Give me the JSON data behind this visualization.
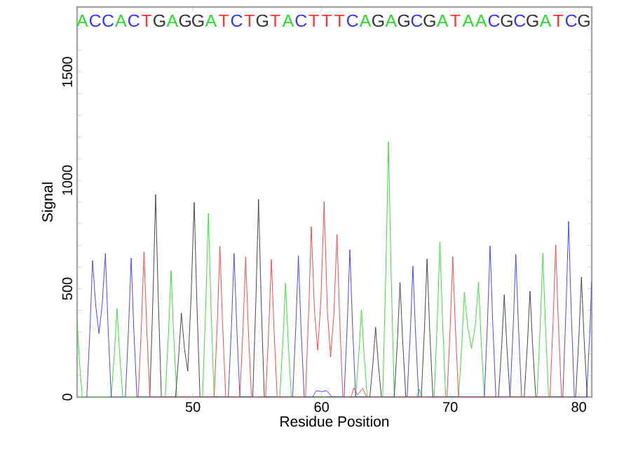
{
  "chart_data": {
    "type": "line",
    "xlabel": "Residue Position",
    "ylabel": "Signal",
    "xlim": [
      41,
      81
    ],
    "ylim": [
      0,
      1800
    ],
    "xticks": [
      50,
      60,
      70,
      80
    ],
    "yticks": [
      0,
      {
        "value": 100,
        "label": null
      },
      {
        "value": 200,
        "label": null
      },
      {
        "value": 300,
        "label": null
      },
      {
        "value": 400,
        "label": null
      },
      500,
      {
        "value": 600,
        "label": null
      },
      {
        "value": 700,
        "label": null
      },
      {
        "value": 800,
        "label": null
      },
      {
        "value": 900,
        "label": null
      },
      1000,
      {
        "value": 1100,
        "label": null
      },
      {
        "value": 1200,
        "label": null
      },
      {
        "value": 1300,
        "label": null
      },
      {
        "value": 1400,
        "label": null
      },
      1500,
      {
        "value": 1600,
        "label": null
      },
      {
        "value": 1700,
        "label": null
      }
    ],
    "marker": "none",
    "line_style": "solid",
    "series": [
      {
        "color": "#22dd22",
        "x": [
          41,
          41.2,
          41.4,
          43.65,
          43.9,
          44.1,
          44.3,
          44.55,
          47.85,
          48.1,
          48.3,
          48.5,
          48.75,
          50.75,
          51,
          51.2,
          51.4,
          51.65,
          56.75,
          57,
          57.2,
          57.4,
          57.65,
          62.65,
          62.9,
          63.1,
          63.3,
          63.55,
          64.75,
          65,
          65.2,
          65.4,
          65.65,
          67.4,
          67.6,
          67.8,
          68.75,
          69,
          69.2,
          69.4,
          69.65,
          70.65,
          70.9,
          71.1,
          71.35,
          71.65,
          71.95,
          72.2,
          72.4,
          72.65,
          76.75,
          77,
          77.2,
          77.4,
          77.65
        ],
        "values": [
          350,
          150,
          0,
          0,
          205,
          409,
          205,
          0,
          0,
          292,
          583,
          292,
          0,
          0,
          424,
          848,
          424,
          0,
          0,
          263,
          526,
          263,
          0,
          0,
          201,
          402,
          201,
          0,
          0,
          589,
          1178,
          589,
          0,
          0,
          37,
          0,
          0,
          358,
          715,
          358,
          0,
          0,
          242,
          483,
          330,
          224,
          330,
          530,
          265,
          0,
          0,
          332,
          663,
          332,
          0
        ]
      },
      {
        "color": "#3333ff",
        "x": [
          41.75,
          42,
          42.2,
          42.45,
          42.7,
          42.95,
          43.2,
          43.4,
          43.65,
          44.75,
          45,
          45.2,
          45.4,
          45.65,
          52.75,
          53,
          53.2,
          53.4,
          53.65,
          57.75,
          58,
          58.2,
          58.4,
          58.65,
          59.3,
          59.6,
          60,
          60.4,
          60.8,
          61.75,
          62,
          62.2,
          62.4,
          62.65,
          66.65,
          66.9,
          67.1,
          67.3,
          67.55,
          72.65,
          72.9,
          73.1,
          73.3,
          73.55,
          74.65,
          74.9,
          75.1,
          75.3,
          75.55,
          78.75,
          79,
          79.2,
          79.4,
          79.65,
          80.6,
          80.85,
          81
        ],
        "values": [
          0,
          315,
          630,
          420,
          293,
          430,
          663,
          332,
          0,
          0,
          320,
          641,
          320,
          0,
          0,
          332,
          663,
          332,
          0,
          0,
          326,
          652,
          326,
          0,
          0,
          30,
          25,
          30,
          0,
          0,
          340,
          680,
          340,
          0,
          0,
          302,
          604,
          302,
          0,
          0,
          349,
          698,
          349,
          0,
          0,
          330,
          659,
          330,
          0,
          0,
          406,
          811,
          406,
          0,
          0,
          300,
          533
        ]
      },
      {
        "color": "#333333",
        "x": [
          46.65,
          46.9,
          47.1,
          47.3,
          47.55,
          48.65,
          48.9,
          49.1,
          49.35,
          49.6,
          49.85,
          50.1,
          50.3,
          50.55,
          54.65,
          54.9,
          55.1,
          55.3,
          55.55,
          63.75,
          64,
          64.2,
          64.4,
          64.65,
          65.65,
          65.9,
          66.1,
          66.3,
          66.55,
          67.75,
          68,
          68.2,
          68.4,
          68.65,
          73.75,
          74,
          74.2,
          74.4,
          74.65,
          75.75,
          76,
          76.2,
          76.4,
          76.65,
          79.75,
          80,
          80.2,
          80.4,
          80.65
        ],
        "values": [
          0,
          468,
          935,
          468,
          0,
          0,
          194,
          387,
          220,
          120,
          450,
          898,
          449,
          0,
          0,
          456,
          913,
          456,
          0,
          0,
          161,
          322,
          161,
          0,
          0,
          264,
          528,
          264,
          0,
          0,
          318,
          637,
          318,
          0,
          0,
          236,
          472,
          236,
          0,
          0,
          244,
          489,
          244,
          0,
          0,
          277,
          554,
          277,
          0
        ]
      },
      {
        "color": "#ff3333",
        "x": [
          45.75,
          46,
          46.2,
          46.4,
          46.65,
          51.65,
          51.9,
          52.1,
          52.3,
          52.55,
          53.65,
          53.9,
          54.1,
          54.3,
          54.55,
          55.65,
          55.9,
          56.1,
          56.3,
          56.55,
          58.75,
          59,
          59.2,
          59.45,
          59.7,
          59.95,
          60.2,
          60.45,
          60.7,
          60.95,
          61.2,
          61.4,
          61.65,
          62.3,
          62.5,
          62.8,
          63.2,
          63.5,
          69.75,
          70,
          70.2,
          70.4,
          70.65,
          77.75,
          78,
          78.2,
          78.4,
          78.65
        ],
        "values": [
          0,
          335,
          670,
          335,
          0,
          0,
          348,
          696,
          348,
          0,
          0,
          323,
          646,
          323,
          0,
          0,
          318,
          635,
          318,
          0,
          0,
          394,
          787,
          400,
          217,
          450,
          902,
          400,
          185,
          375,
          750,
          375,
          0,
          0,
          43,
          10,
          40,
          0,
          0,
          324,
          648,
          324,
          0,
          0,
          351,
          702,
          351,
          0
        ]
      }
    ],
    "annotations": [
      "A",
      "C",
      "C",
      "A",
      "C",
      "T",
      "G",
      "A",
      "G",
      "G",
      "A",
      "T",
      "C",
      "T",
      "G",
      "T",
      "A",
      "C",
      "T",
      "T",
      "T",
      "C",
      "A",
      "G",
      "A",
      "G",
      "C",
      "G",
      "A",
      "T",
      "A",
      "A",
      "C",
      "G",
      "C",
      "G",
      "A",
      "T",
      "C",
      "G"
    ]
  }
}
